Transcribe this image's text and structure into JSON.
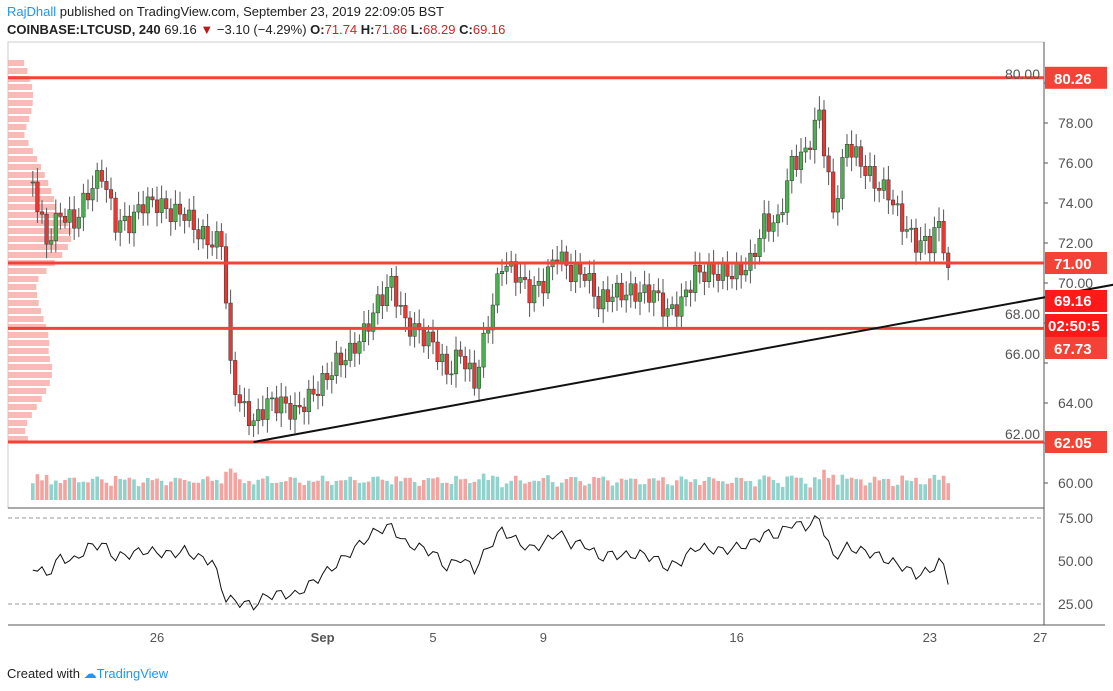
{
  "header": {
    "author": "RajDhall",
    "published": " published on TradingView.com, September 23, 2019 22:09:05 BST",
    "symbol": "COINBASE:LTCUSD, 240",
    "last": "69.16",
    "change": "−3.10 (−4.29%)",
    "o_label": "O:",
    "o": "71.74",
    "h_label": "H:",
    "h": "71.86",
    "l_label": "L:",
    "l": "68.29",
    "c_label": "C:",
    "c": "69.16"
  },
  "footer": {
    "created": "Created with",
    "brand": "TradingView"
  },
  "colors": {
    "up": "#26a69a",
    "down": "#ef5350",
    "level": "#f44336",
    "label_bg": "#f44336"
  },
  "price_axis": [
    "80.00",
    "78.00",
    "76.00",
    "74.00",
    "72.00",
    "70.00",
    "68.00",
    "66.00",
    "64.00",
    "62.00",
    "60.00"
  ],
  "level_labels": [
    {
      "text": "80.26",
      "price": 80.26
    },
    {
      "text": "71.00",
      "price": 71.0
    },
    {
      "text": "67.73",
      "price": 67.73
    },
    {
      "text": "62.05",
      "price": 62.05
    }
  ],
  "current_price_label": "69.16",
  "countdown_label": "02:50:5",
  "rsi_axis": [
    "75.00",
    "50.00",
    "25.00"
  ],
  "date_axis": [
    {
      "text": "26",
      "day": 26
    },
    {
      "text": "Sep",
      "day": 32
    },
    {
      "text": "5",
      "day": 36
    },
    {
      "text": "9",
      "day": 40
    },
    {
      "text": "16",
      "day": 47
    },
    {
      "text": "23",
      "day": 54
    },
    {
      "text": "27",
      "day": 58
    }
  ],
  "chart_data": {
    "type": "candlestick",
    "price_range": [
      59,
      81.5
    ],
    "levels": [
      80.26,
      71.0,
      67.73,
      62.05
    ],
    "trendline": [
      [
        29.5,
        62.05
      ],
      [
        61,
        70.0
      ]
    ],
    "path": [
      [
        21.5,
        75
      ],
      [
        22,
        72
      ],
      [
        22.5,
        73.5
      ],
      [
        23,
        73
      ],
      [
        23.5,
        74.5
      ],
      [
        24,
        75.5
      ],
      [
        24.5,
        73
      ],
      [
        25,
        73
      ],
      [
        25.5,
        74
      ],
      [
        26,
        74
      ],
      [
        26.5,
        73.5
      ],
      [
        27,
        73.5
      ],
      [
        27.5,
        72.5
      ],
      [
        28,
        72
      ],
      [
        28.4,
        72.2
      ],
      [
        28.6,
        66
      ],
      [
        29,
        64
      ],
      [
        29.5,
        63
      ],
      [
        30,
        64
      ],
      [
        30.5,
        64
      ],
      [
        31,
        63.5
      ],
      [
        32,
        65
      ],
      [
        32.5,
        66
      ],
      [
        33,
        66.5
      ],
      [
        33.5,
        67.5
      ],
      [
        34,
        69
      ],
      [
        34.5,
        70
      ],
      [
        35,
        68
      ],
      [
        35.5,
        67.5
      ],
      [
        36,
        67
      ],
      [
        36.5,
        65.5
      ],
      [
        37,
        66.5
      ],
      [
        37.5,
        65
      ],
      [
        38,
        68
      ],
      [
        38.5,
        71
      ],
      [
        39,
        70.5
      ],
      [
        39.5,
        69.5
      ],
      [
        40,
        70
      ],
      [
        40.5,
        71.5
      ],
      [
        41,
        70.5
      ],
      [
        41.5,
        70.5
      ],
      [
        42,
        69
      ],
      [
        42.5,
        69.5
      ],
      [
        43,
        69.5
      ],
      [
        43.5,
        69.5
      ],
      [
        44,
        69.5
      ],
      [
        44.5,
        68.5
      ],
      [
        45,
        69
      ],
      [
        45.5,
        70.5
      ],
      [
        46,
        70.5
      ],
      [
        46.5,
        70.5
      ],
      [
        47,
        70.5
      ],
      [
        47.5,
        71
      ],
      [
        48,
        73
      ],
      [
        48.5,
        73
      ],
      [
        49,
        76
      ],
      [
        49.5,
        76.5
      ],
      [
        50,
        78.5
      ],
      [
        50.5,
        73.5
      ],
      [
        51,
        77
      ],
      [
        51.5,
        76
      ],
      [
        52,
        75
      ],
      [
        52.5,
        74.5
      ],
      [
        53,
        73
      ],
      [
        53.5,
        72
      ],
      [
        54,
        72
      ],
      [
        54.3,
        73
      ],
      [
        54.6,
        71.5
      ],
      [
        54.75,
        69.16
      ]
    ],
    "rsi": {
      "range": [
        20,
        80
      ],
      "levels": [
        75,
        25
      ],
      "path": [
        [
          21.5,
          47
        ],
        [
          22,
          42
        ],
        [
          22.5,
          52
        ],
        [
          23,
          50
        ],
        [
          23.5,
          58
        ],
        [
          24,
          60
        ],
        [
          24.5,
          52
        ],
        [
          25,
          54
        ],
        [
          25.5,
          56
        ],
        [
          26,
          55
        ],
        [
          26.5,
          54
        ],
        [
          27,
          56
        ],
        [
          27.5,
          52
        ],
        [
          28,
          50
        ],
        [
          28.5,
          28
        ],
        [
          29,
          26
        ],
        [
          29.5,
          24
        ],
        [
          30,
          30
        ],
        [
          30.5,
          31
        ],
        [
          31,
          30
        ],
        [
          32,
          42
        ],
        [
          32.5,
          48
        ],
        [
          33,
          55
        ],
        [
          33.5,
          62
        ],
        [
          34,
          68
        ],
        [
          34.5,
          70
        ],
        [
          35,
          60
        ],
        [
          35.5,
          58
        ],
        [
          36,
          55
        ],
        [
          36.5,
          46
        ],
        [
          37,
          52
        ],
        [
          37.5,
          45
        ],
        [
          38,
          58
        ],
        [
          38.5,
          68
        ],
        [
          39,
          62
        ],
        [
          39.5,
          57
        ],
        [
          40,
          60
        ],
        [
          40.5,
          67
        ],
        [
          41,
          60
        ],
        [
          41.5,
          60
        ],
        [
          42,
          52
        ],
        [
          42.5,
          54
        ],
        [
          43,
          53
        ],
        [
          43.5,
          54
        ],
        [
          44,
          52
        ],
        [
          44.5,
          46
        ],
        [
          45,
          50
        ],
        [
          45.5,
          58
        ],
        [
          46,
          57
        ],
        [
          46.5,
          56
        ],
        [
          47,
          58
        ],
        [
          47.5,
          60
        ],
        [
          48,
          66
        ],
        [
          48.5,
          65
        ],
        [
          49,
          72
        ],
        [
          49.5,
          70
        ],
        [
          50,
          75
        ],
        [
          50.5,
          52
        ],
        [
          51,
          58
        ],
        [
          51.5,
          56
        ],
        [
          52,
          54
        ],
        [
          52.5,
          50
        ],
        [
          53,
          47
        ],
        [
          53.5,
          42
        ],
        [
          54,
          44
        ],
        [
          54.3,
          50
        ],
        [
          54.6,
          45
        ],
        [
          54.75,
          32
        ]
      ]
    }
  }
}
